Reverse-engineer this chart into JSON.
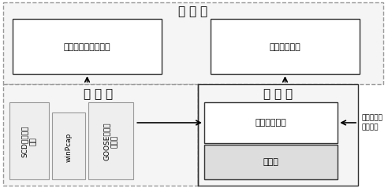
{
  "bg_color": "#ffffff",
  "title": "表 现 层",
  "data_layer_title": "数 据 层",
  "business_layer_title": "业 务 层",
  "box1_text": "开关场设备图形驱动",
  "box2_text": "报告自动生成",
  "box3_text": "比较分析模块",
  "box4_text": "标准库",
  "scd_line1": "SCD文件解析",
  "scd_line2": "模块",
  "winpcap_text": "winPcap",
  "goose_line1": "GOOSE报文收",
  "goose_line2": "发驱动",
  "annotation_text": "测控返回的\n逻辑结果",
  "font_size_title": 11,
  "font_size_label": 8,
  "font_size_small": 6.5,
  "font_size_note": 6.5
}
